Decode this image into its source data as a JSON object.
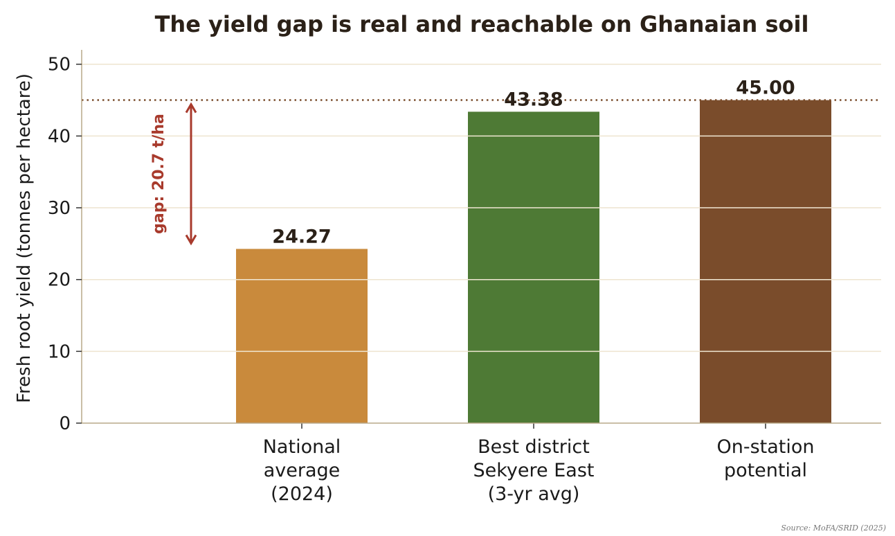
{
  "chart_data": {
    "type": "bar",
    "title": "The yield gap is real and reachable on Ghanaian soil",
    "ylabel": "Fresh root yield (tonnes per hectare)",
    "xlabel": "",
    "ylim": [
      0,
      52
    ],
    "yticks": [
      0,
      10,
      20,
      30,
      40,
      50
    ],
    "grid": true,
    "categories": [
      [
        "National",
        "average",
        "(2024)"
      ],
      [
        "Best district",
        "Sekyere East",
        "(3-yr avg)"
      ],
      [
        "On-station",
        "potential"
      ]
    ],
    "values": [
      24.27,
      43.38,
      45.0
    ],
    "value_labels": [
      "24.27",
      "43.38",
      "45.00"
    ],
    "colors": [
      "#c98a3c",
      "#4e7a35",
      "#7a4c2b"
    ],
    "reference_line": {
      "value": 45.0,
      "style": "dotted",
      "color": "#7a4c2b"
    },
    "annotation": {
      "text": "gap: 20.7 t/ha",
      "from": 24.27,
      "to": 45.0,
      "color": "#a83a2c"
    },
    "source": "Source: MoFA/SRID (2025)"
  }
}
